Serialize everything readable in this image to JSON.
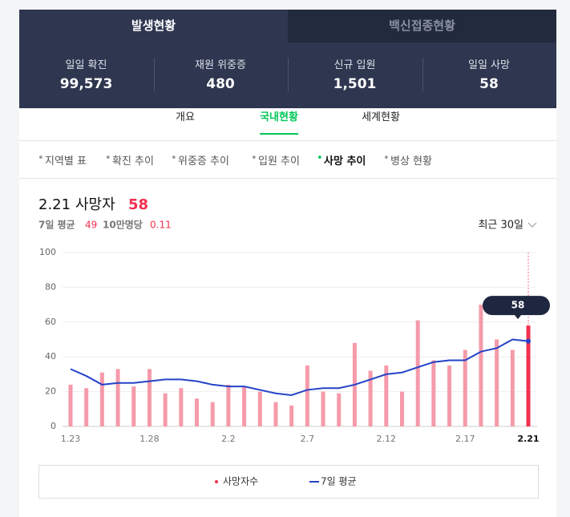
{
  "tabs": [
    "발생현황",
    "백신접종현황"
  ],
  "stats": [
    {
      "label": "일일 확진",
      "value": "99,573"
    },
    {
      "label": "재원 위중증",
      "value": "480"
    },
    {
      "label": "신규 입원",
      "value": "1,501"
    },
    {
      "label": "일일 사망",
      "value": "58"
    }
  ],
  "subtabs": [
    "개요",
    "국내현황",
    "세계현황"
  ],
  "menu": [
    "지역별 표",
    "확진 추이",
    "위중증 추이",
    "입원 추이",
    "사망 추이",
    "병상 현황"
  ],
  "chart_data": {
    "type": "bar",
    "date": "2.21",
    "title": "사망자",
    "headline": "58",
    "avg_label": "7일 평균",
    "avg_value": "49",
    "per_label": "10만명당",
    "per_value": "0.11",
    "period": "최근 30일",
    "categories": [
      "1.23",
      null,
      null,
      null,
      null,
      "1.28",
      null,
      null,
      null,
      null,
      "2.2",
      null,
      null,
      null,
      null,
      "2.7",
      null,
      null,
      null,
      null,
      "2.12",
      null,
      null,
      null,
      null,
      "2.17",
      null,
      null,
      null,
      "2.21"
    ],
    "series": [
      {
        "name": "사망자수",
        "type": "bar",
        "color": "#f59aaa",
        "highlight_color": "#f2304f",
        "values": [
          24,
          22,
          31,
          33,
          23,
          33,
          19,
          22,
          16,
          14,
          24,
          23,
          20,
          14,
          12,
          35,
          20,
          19,
          48,
          32,
          35,
          20,
          61,
          38,
          35,
          44,
          70,
          50,
          44,
          58
        ]
      },
      {
        "name": "7일 평균",
        "type": "line",
        "color": "#2443c8",
        "values": [
          33,
          29,
          24,
          25,
          25,
          26,
          27,
          27,
          26,
          24,
          23,
          23,
          21,
          19,
          18,
          21,
          22,
          22,
          24,
          27,
          30,
          31,
          34,
          37,
          38,
          38,
          43,
          45,
          50,
          49
        ]
      }
    ],
    "ylim": [
      0,
      100
    ],
    "yticks": [
      0,
      20,
      40,
      60,
      80,
      100
    ],
    "grid": true
  }
}
